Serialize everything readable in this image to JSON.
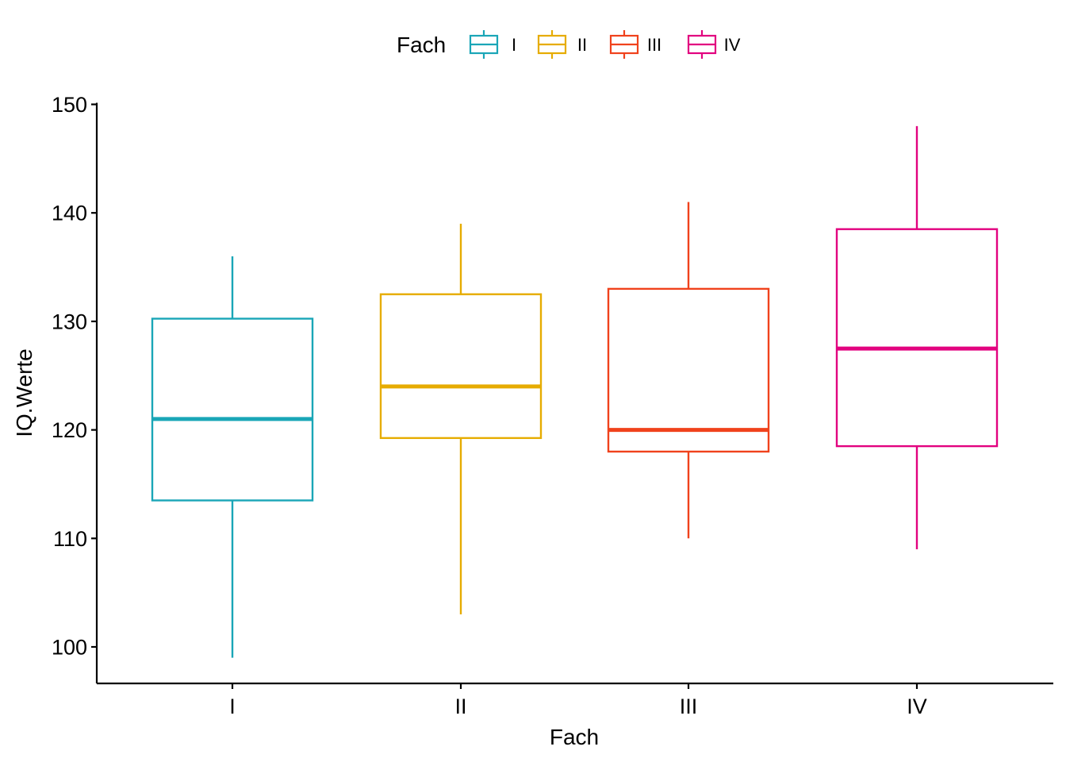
{
  "chart_data": {
    "type": "box",
    "xlabel": "Fach",
    "ylabel": "IQ.Werte",
    "ylim": [
      97,
      152
    ],
    "yticks": [
      100,
      110,
      120,
      130,
      140,
      150
    ],
    "categories": [
      "I",
      "II",
      "III",
      "IV"
    ],
    "legend": {
      "title": "Fach",
      "placement": "top",
      "entries": [
        "I",
        "II",
        "III",
        "IV"
      ]
    },
    "colors": [
      "#1AA6B7",
      "#E6AC00",
      "#F0421C",
      "#E2027F"
    ],
    "grid": false,
    "boxes": [
      {
        "category": "I",
        "min": 99,
        "q1": 113.5,
        "median": 121,
        "q3": 130.25,
        "max": 136
      },
      {
        "category": "II",
        "min": 103,
        "q1": 119.25,
        "median": 124,
        "q3": 132.5,
        "max": 139
      },
      {
        "category": "III",
        "min": 110,
        "q1": 118,
        "median": 120,
        "q3": 133,
        "max": 141
      },
      {
        "category": "IV",
        "min": 109,
        "q1": 118.5,
        "median": 127.5,
        "q3": 138.5,
        "max": 148
      }
    ]
  }
}
